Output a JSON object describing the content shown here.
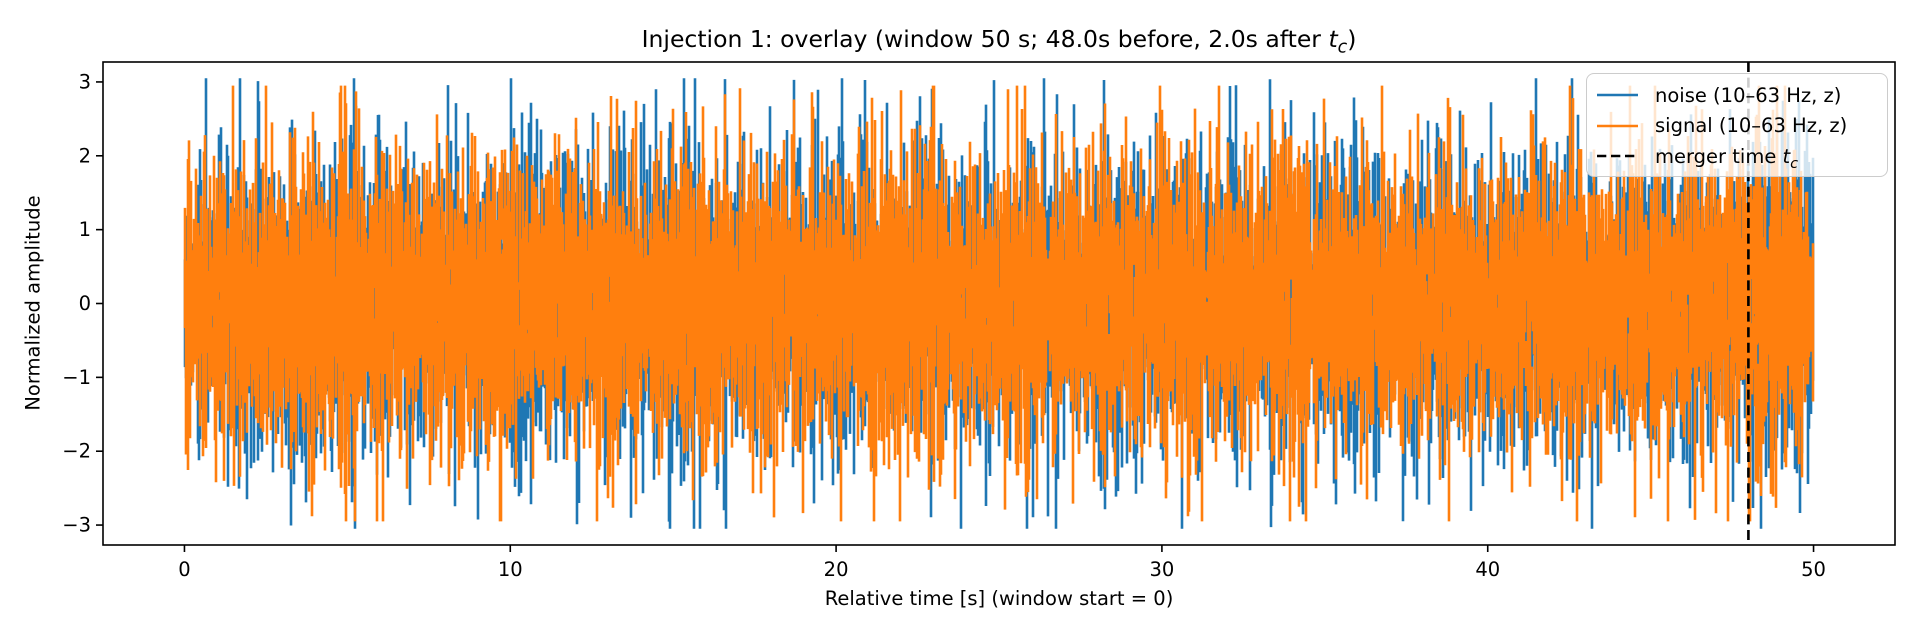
{
  "figure": {
    "title": {
      "prefix": "Injection 1: overlay (window 50 s; 48.0s before, 2.0s after ",
      "math_var": "t",
      "math_sub": "c",
      "suffix": ")"
    },
    "xlabel": "Relative time [s] (window start = 0)",
    "ylabel": "Normalized amplitude"
  },
  "legend": {
    "location": "upper right",
    "entries": [
      {
        "id": "noise",
        "label": "noise (10–63 Hz, z)",
        "color": "#1f77b4",
        "line_style": "solid"
      },
      {
        "id": "signal",
        "label": "signal (10–63 Hz, z)",
        "color": "#ff7f0e",
        "line_style": "solid"
      },
      {
        "id": "merger",
        "label_prefix": "merger time ",
        "math_var": "t",
        "math_sub": "c",
        "label_plain": "merger time t_c",
        "color": "#000000",
        "line_style": "dashed"
      }
    ]
  },
  "chart_data": {
    "type": "line",
    "title": "Injection 1: overlay (window 50 s; 48.0s before, 2.0s after t_c)",
    "xlabel": "Relative time [s] (window start = 0)",
    "ylabel": "Normalized amplitude",
    "xlim": [
      -2.5,
      52.5
    ],
    "ylim": [
      -3.27,
      3.27
    ],
    "xticks": [
      0,
      10,
      20,
      30,
      40,
      50
    ],
    "yticks": [
      -3,
      -2,
      -1,
      0,
      1,
      2,
      3
    ],
    "grid": false,
    "legend_loc": "upper right",
    "window_s": 50,
    "before_tc_s": 48.0,
    "after_tc_s": 2.0,
    "series": [
      {
        "name": "noise (10–63 Hz, z)",
        "color": "#1f77b4",
        "kind": "band-limited gaussian noise, z-scored",
        "band_hz": [
          10,
          63
        ],
        "t_range_s": [
          0,
          50
        ],
        "mean": 0,
        "std": 1,
        "approx_peak_abs": 3.05,
        "seed": 1337
      },
      {
        "name": "signal (10–63 Hz, z)",
        "color": "#ff7f0e",
        "kind": "band-limited gaussian noise, z-scored",
        "band_hz": [
          10,
          63
        ],
        "t_range_s": [
          0,
          50
        ],
        "mean": 0,
        "std": 1,
        "approx_peak_abs": 2.95,
        "seed": 4242
      }
    ],
    "vline": {
      "x": 48.0,
      "color": "#000000",
      "style": "dashed",
      "label": "merger time t_c"
    }
  }
}
